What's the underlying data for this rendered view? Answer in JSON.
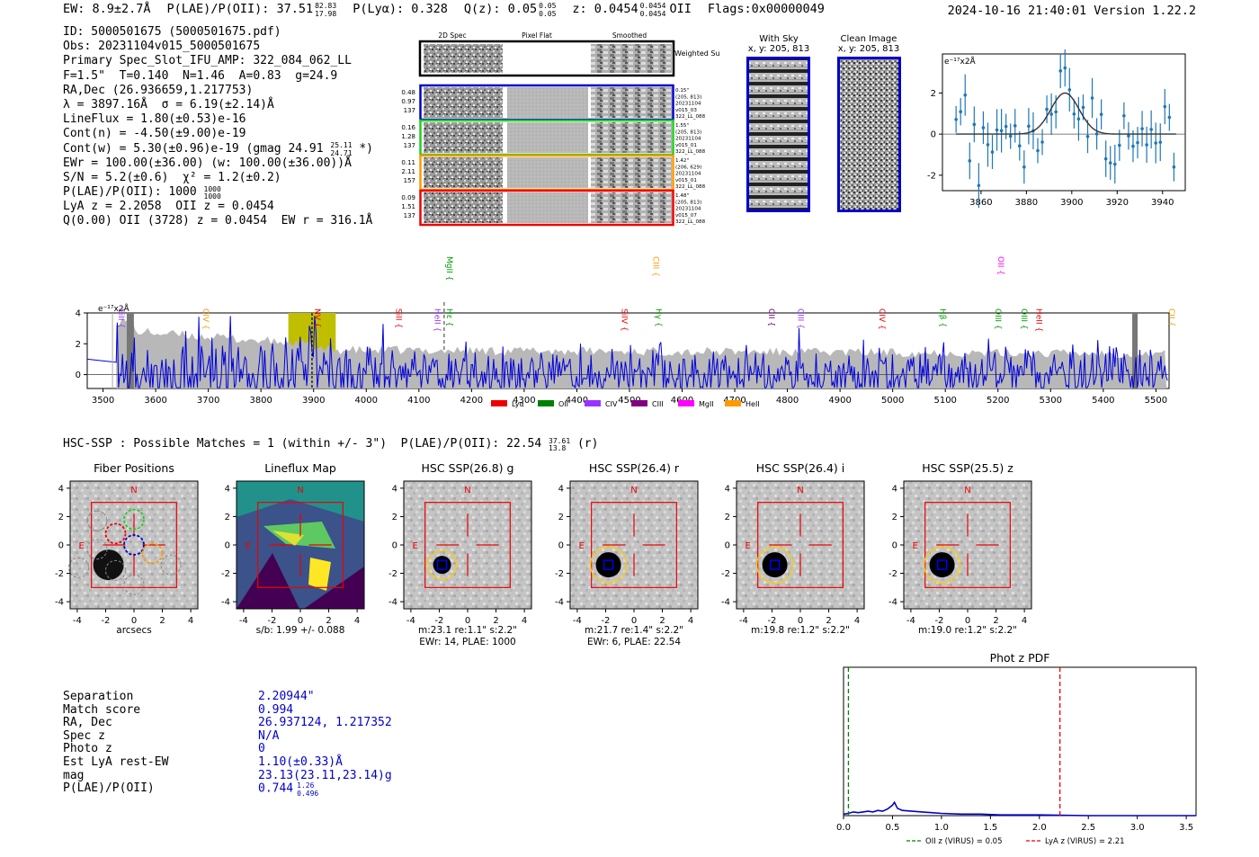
{
  "header": {
    "ew": "EW: 8.9±2.7Å",
    "plae": "P(LAE)/P(OII): 37.51",
    "plae_hi": "82.83",
    "plae_lo": "17.98",
    "plya": "P(Lyα): 0.328",
    "qz": "Q(z): 0.05",
    "qz_hi": "0.05",
    "qz_lo": "0.05",
    "z": "z: 0.0454",
    "z_hi": "0.0454",
    "z_lo": "0.0454",
    "z_line": "OII",
    "flags": "Flags:0x00000049",
    "timestamp": "2024-10-16 21:40:01  Version 1.22.2"
  },
  "info": {
    "id": "ID: 5000501675 (5000501675.pdf)",
    "obs": "Obs: 20231104v015_5000501675",
    "primary": "Primary Spec_Slot_IFU_AMP: 322_084_062_LL",
    "fwhm": "F=1.5\"  T=0.140  N=1.46  A=0.83  g=24.9",
    "radec": "RA,Dec (26.936659,1.217753)",
    "lambda": "λ = 3897.16Å  σ = 6.19(±2.14)Å",
    "lineflux": "LineFlux = 1.80(±0.53)e-16",
    "contn": "Cont(n) = -4.50(±9.00)e-19",
    "contw": "Cont(w) = 5.30(±0.96)e-19 (gmag 24.91",
    "contw_hi": "25.11",
    "contw_lo": "24.71",
    "contw_end": " *)",
    "ewr": "EWr = 100.00(±36.00) (w: 100.00(±36.00))Å",
    "sn": "S/N = 5.2(±0.6)  χ² = 1.2(±0.2)",
    "plae": "P(LAE)/P(OII): 1000",
    "plae_hi": "1000",
    "plae_lo": "1000",
    "lya": "LyA z = 2.2058  OII z = 0.0454",
    "q": "Q(0.00) OII (3728) z = 0.0454  EW r = 316.1Å"
  },
  "cutouts": {
    "col_2d": "2D Spec",
    "col_flat": "Pixel Flat",
    "col_smooth": "Smoothed",
    "weighted": "Weighted Sum",
    "rows": [
      {
        "color": "#0000cc",
        "left": [
          "0.48",
          "0.97",
          "137"
        ],
        "right": [
          "0.15\"",
          "(205, 813)",
          "20231104",
          "v015_03",
          "322_LL_088"
        ]
      },
      {
        "color": "#22cc22",
        "left": [
          "0.16",
          "1.28",
          "137"
        ],
        "right": [
          "1.55\"",
          "(205, 813)",
          "20231104",
          "v015_01",
          "322_LL_088"
        ]
      },
      {
        "color": "#ff9900",
        "left": [
          "0.11",
          "2.11",
          "157"
        ],
        "right": [
          "1.42\"",
          "(206, 629)",
          "20231104",
          "v015_01",
          "322_LL_088"
        ]
      },
      {
        "color": "#ee0000",
        "left": [
          "0.09",
          "1.51",
          "137"
        ],
        "right": [
          "1.48\"",
          "(205, 813)",
          "20231104",
          "v015_07",
          "322_LL_088"
        ]
      }
    ],
    "with_sky": "With Sky",
    "with_sky_xy": "x, y: 205, 813",
    "clean": "Clean Image",
    "clean_xy": "x, y: 205, 813"
  },
  "zoom_plot": {
    "ylabel": "e⁻¹⁷x2Å",
    "xticks": [
      "3860",
      "3880",
      "3900",
      "3920",
      "3940"
    ],
    "yticks": [
      "2",
      "0",
      "-2"
    ]
  },
  "spectrum": {
    "ylabel": "e⁻¹⁷x2Å",
    "xticks": [
      "3500",
      "3600",
      "3700",
      "3800",
      "3900",
      "4000",
      "4100",
      "4200",
      "4300",
      "4400",
      "4500",
      "4600",
      "4700",
      "4800",
      "4900",
      "5000",
      "5100",
      "5200",
      "5300",
      "5400",
      "5500"
    ],
    "yticks": [
      "4",
      "2",
      "0"
    ],
    "lines": [
      {
        "label": "SiII",
        "color": "#9933ff",
        "x": 3525,
        "row": 1
      },
      {
        "label": "CIV",
        "color": "#ff9900",
        "x": 3685,
        "row": 1
      },
      {
        "label": "NV",
        "color": "#ee0000",
        "x": 3897,
        "row": 1
      },
      {
        "label": "SiII",
        "color": "#ee0000",
        "x": 4052,
        "row": 1
      },
      {
        "label": "HeII",
        "color": "#9933ff",
        "x": 4125,
        "row": 1
      },
      {
        "label": "Hε",
        "color": "#009900",
        "x": 4148,
        "row": 1
      },
      {
        "label": "MgII",
        "color": "#009900",
        "x": 4148,
        "row": 0
      },
      {
        "label": "CIII",
        "color": "#ff9900",
        "x": 4540,
        "row": 0
      },
      {
        "label": "SiIV",
        "color": "#ee0000",
        "x": 4480,
        "row": 1
      },
      {
        "label": "Hγ",
        "color": "#009900",
        "x": 4545,
        "row": 1
      },
      {
        "label": "CII",
        "color": "#800080",
        "x": 4760,
        "row": 1
      },
      {
        "label": "CIII",
        "color": "#9933ff",
        "x": 4815,
        "row": 1
      },
      {
        "label": "CIV",
        "color": "#ee0000",
        "x": 4970,
        "row": 1
      },
      {
        "label": "Hβ",
        "color": "#009900",
        "x": 5085,
        "row": 1
      },
      {
        "label": "OIII",
        "color": "#009900",
        "x": 5190,
        "row": 1
      },
      {
        "label": "OII",
        "color": "#ff00ff",
        "x": 5195,
        "row": 0
      },
      {
        "label": "OIII",
        "color": "#009900",
        "x": 5240,
        "row": 1
      },
      {
        "label": "HeII",
        "color": "#ee0000",
        "x": 5268,
        "row": 1
      },
      {
        "label": "CII",
        "color": "#ff9900",
        "x": 5520,
        "row": 1
      }
    ],
    "legend": [
      {
        "label": "Lyα",
        "color": "#ee0000"
      },
      {
        "label": "OII",
        "color": "#008000"
      },
      {
        "label": "CIV",
        "color": "#9933ff"
      },
      {
        "label": "CIII",
        "color": "#800080"
      },
      {
        "label": "MgII",
        "color": "#ff00ff"
      },
      {
        "label": "HeII",
        "color": "#ff9900"
      }
    ]
  },
  "hsc": {
    "summary": "HSC-SSP : Possible Matches = 1 (within +/- 3\")  P(LAE)/P(OII): 22.54",
    "summary_hi": "37.61",
    "summary_lo": "13.8",
    "summary_end": " (r)",
    "panels": [
      {
        "title": "Fiber Positions",
        "caption": "arcsecs"
      },
      {
        "title": "Lineflux Map",
        "caption": "s/b: 1.99 +/- 0.088"
      },
      {
        "title": "HSC SSP(26.8) g",
        "caption": "m:23.1  re:1.1\"  s:2.2\"\nEWr: 14, PLAE: 1000"
      },
      {
        "title": "HSC SSP(26.4) r",
        "caption": "m:21.7  re:1.4\"  s:2.2\"\nEWr: 6, PLAE: 22.54"
      },
      {
        "title": "HSC SSP(26.4) i",
        "caption": "m:19.8  re:1.2\"  s:2.2\""
      },
      {
        "title": "HSC SSP(25.5) z",
        "caption": "m:19.0  re:1.2\"  s:2.2\""
      }
    ],
    "axis_ticks": [
      "4",
      "2",
      "0",
      "-2",
      "-4"
    ],
    "x_ticks": [
      "-4",
      "-2",
      "0",
      "2",
      "4"
    ],
    "north": "N",
    "east": "E"
  },
  "match": [
    {
      "label": "Separation",
      "value": "2.20944\""
    },
    {
      "label": "Match score",
      "value": "0.994"
    },
    {
      "label": "RA, Dec",
      "value": "26.937124, 1.217352"
    },
    {
      "label": "Spec z",
      "value": "N/A"
    },
    {
      "label": "Photo z",
      "value": "0"
    },
    {
      "label": "Est LyA rest-EW",
      "value": "1.10(±0.33)Å"
    },
    {
      "label": "mag",
      "value": "23.13(23.11,23.14)g"
    },
    {
      "label": "P(LAE)/P(OII)",
      "value": "0.744",
      "hi": "1.26",
      "lo": "0.496"
    }
  ],
  "chart_data": {
    "type": "line",
    "title": "Phot z PDF",
    "xlabel": "",
    "ylabel": "",
    "xlim": [
      0.0,
      3.6
    ],
    "xticks": [
      "0.0",
      "0.5",
      "1.0",
      "1.5",
      "2.0",
      "2.5",
      "3.0",
      "3.5"
    ],
    "series": [
      {
        "name": "PDF",
        "color": "#0000cc",
        "x": [
          0.0,
          0.05,
          0.1,
          0.15,
          0.2,
          0.25,
          0.3,
          0.35,
          0.4,
          0.45,
          0.5,
          0.52,
          0.55,
          0.6,
          0.7,
          0.8,
          0.9,
          1.0,
          1.2,
          1.4,
          1.6,
          2.0,
          2.5,
          3.0,
          3.6
        ],
        "values": [
          0.02,
          0.03,
          0.05,
          0.04,
          0.05,
          0.06,
          0.05,
          0.07,
          0.06,
          0.09,
          0.14,
          0.18,
          0.1,
          0.07,
          0.06,
          0.05,
          0.04,
          0.03,
          0.02,
          0.02,
          0.01,
          0.01,
          0.0,
          0.0,
          0.0
        ]
      }
    ],
    "ylim": [
      0,
      2.0
    ],
    "vlines": [
      {
        "label": "OII z (VIRUS) = 0.05",
        "x": 0.05,
        "color": "#008000"
      },
      {
        "label": "LyA z (VIRUS) = 2.21",
        "x": 2.21,
        "color": "#ee0000"
      }
    ]
  }
}
